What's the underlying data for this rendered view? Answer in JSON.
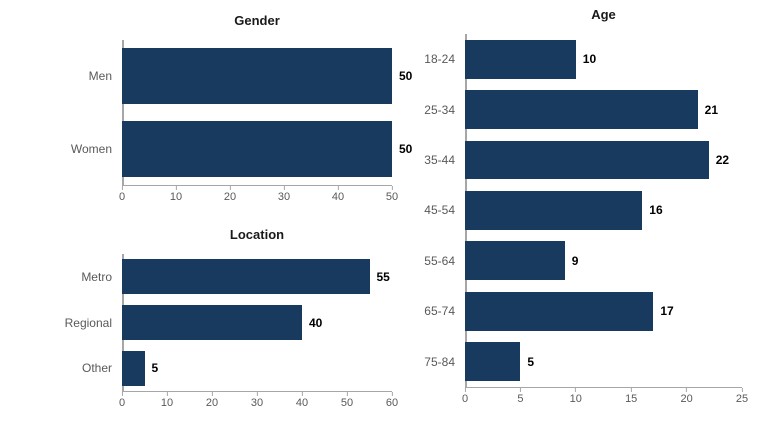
{
  "page": {
    "background": "#ffffff"
  },
  "colors": {
    "bar": "#173a5e",
    "axis_line": "#a6a6a6",
    "tick_label": "#595959",
    "category_label": "#595959",
    "value_label": "#000000",
    "title": "#1a1a1a"
  },
  "chart_data": [
    {
      "id": "gender",
      "type": "bar",
      "orientation": "horizontal",
      "title": "Gender",
      "categories": [
        "Men",
        "Women"
      ],
      "values": [
        50,
        50
      ],
      "xlabel": "",
      "ylabel": "",
      "xlim": [
        0,
        50
      ],
      "xticks": [
        0,
        10,
        20,
        30,
        40,
        50
      ],
      "grid": false,
      "legend": false,
      "data_labels": true
    },
    {
      "id": "location",
      "type": "bar",
      "orientation": "horizontal",
      "title": "Location",
      "categories": [
        "Metro",
        "Regional",
        "Other"
      ],
      "values": [
        55,
        40,
        5
      ],
      "xlabel": "",
      "ylabel": "",
      "xlim": [
        0,
        60
      ],
      "xticks": [
        0,
        10,
        20,
        30,
        40,
        50,
        60
      ],
      "grid": false,
      "legend": false,
      "data_labels": true
    },
    {
      "id": "age",
      "type": "bar",
      "orientation": "horizontal",
      "title": "Age",
      "categories": [
        "18-24",
        "25-34",
        "35-44",
        "45-54",
        "55-64",
        "65-74",
        "75-84"
      ],
      "values": [
        10,
        21,
        22,
        16,
        9,
        17,
        5
      ],
      "xlabel": "",
      "ylabel": "",
      "xlim": [
        0,
        25
      ],
      "xticks": [
        0,
        5,
        10,
        15,
        20,
        25
      ],
      "grid": false,
      "legend": false,
      "data_labels": true
    }
  ]
}
